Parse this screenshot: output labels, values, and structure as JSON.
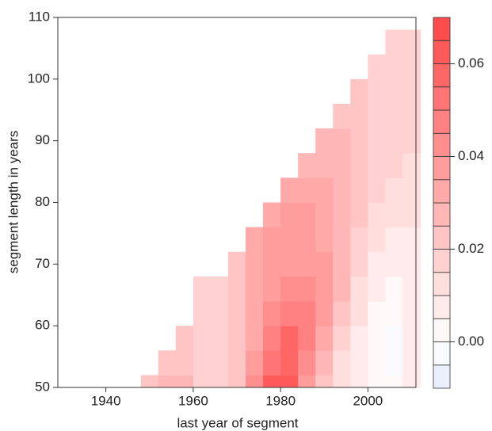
{
  "chart_data": {
    "type": "contour",
    "xlabel": "last year of segment",
    "ylabel": "segment length in years",
    "xlim": [
      1929,
      2011
    ],
    "ylim": [
      50,
      110
    ],
    "xticks": [
      1940,
      1960,
      1980,
      2000
    ],
    "yticks": [
      50,
      60,
      70,
      80,
      90,
      100,
      110
    ],
    "x": [
      1950,
      1954,
      1958,
      1962,
      1966,
      1970,
      1974,
      1978,
      1982,
      1986,
      1990,
      1994,
      1998,
      2002,
      2006,
      2010
    ],
    "y": [
      50,
      54,
      58,
      62,
      66,
      70,
      74,
      78,
      82,
      86,
      90,
      94,
      98,
      102,
      106
    ],
    "z": [
      [
        0.02,
        0.025,
        0.025,
        0.015,
        0.015,
        0.02,
        0.04,
        0.06,
        0.06,
        0.035,
        0.02,
        0.01,
        0.005,
        0.0,
        0.0,
        0.005
      ],
      [
        null,
        0.02,
        0.02,
        0.015,
        0.015,
        0.02,
        0.035,
        0.05,
        0.055,
        0.04,
        0.025,
        0.01,
        0.005,
        0.0,
        -0.005,
        0.005
      ],
      [
        null,
        null,
        0.02,
        0.015,
        0.015,
        0.02,
        0.03,
        0.045,
        0.055,
        0.045,
        0.03,
        0.015,
        0.005,
        0.0,
        -0.005,
        0.005
      ],
      [
        null,
        null,
        null,
        0.015,
        0.015,
        0.02,
        0.03,
        0.04,
        0.045,
        0.045,
        0.035,
        0.02,
        0.01,
        0.0,
        0.0,
        0.005
      ],
      [
        null,
        null,
        null,
        0.015,
        0.015,
        0.02,
        0.03,
        0.035,
        0.04,
        0.04,
        0.035,
        0.025,
        0.01,
        0.005,
        0.0,
        0.005
      ],
      [
        null,
        null,
        null,
        null,
        null,
        0.02,
        0.03,
        0.035,
        0.035,
        0.035,
        0.035,
        0.025,
        0.015,
        0.005,
        0.005,
        0.005
      ],
      [
        null,
        null,
        null,
        null,
        null,
        null,
        0.03,
        0.035,
        0.035,
        0.035,
        0.03,
        0.025,
        0.015,
        0.01,
        0.005,
        0.005
      ],
      [
        null,
        null,
        null,
        null,
        null,
        null,
        null,
        0.03,
        0.035,
        0.035,
        0.03,
        0.025,
        0.02,
        0.01,
        0.01,
        0.01
      ],
      [
        null,
        null,
        null,
        null,
        null,
        null,
        null,
        null,
        0.03,
        0.03,
        0.03,
        0.025,
        0.02,
        0.015,
        0.01,
        0.01
      ],
      [
        null,
        null,
        null,
        null,
        null,
        null,
        null,
        null,
        null,
        0.025,
        0.025,
        0.025,
        0.02,
        0.015,
        0.015,
        0.01
      ],
      [
        null,
        null,
        null,
        null,
        null,
        null,
        null,
        null,
        null,
        null,
        0.025,
        0.025,
        0.02,
        0.015,
        0.015,
        0.015
      ],
      [
        null,
        null,
        null,
        null,
        null,
        null,
        null,
        null,
        null,
        null,
        null,
        0.02,
        0.02,
        0.015,
        0.015,
        0.015
      ],
      [
        null,
        null,
        null,
        null,
        null,
        null,
        null,
        null,
        null,
        null,
        null,
        null,
        0.02,
        0.015,
        0.015,
        0.015
      ],
      [
        null,
        null,
        null,
        null,
        null,
        null,
        null,
        null,
        null,
        null,
        null,
        null,
        null,
        0.015,
        0.015,
        0.015
      ],
      [
        null,
        null,
        null,
        null,
        null,
        null,
        null,
        null,
        null,
        null,
        null,
        null,
        null,
        null,
        0.015,
        0.015
      ]
    ],
    "colorbar": {
      "levels": [
        -0.01,
        -0.005,
        0.0,
        0.005,
        0.01,
        0.015,
        0.02,
        0.025,
        0.03,
        0.035,
        0.04,
        0.045,
        0.05,
        0.055,
        0.06,
        0.065,
        0.07
      ],
      "ticks": [
        {
          "value": 0.0,
          "label": "0.00"
        },
        0.02,
        0.04,
        0.06
      ],
      "low_color": "#e4e9fb",
      "mid_color": "#ffffff",
      "high_color": "#ff4646"
    }
  }
}
